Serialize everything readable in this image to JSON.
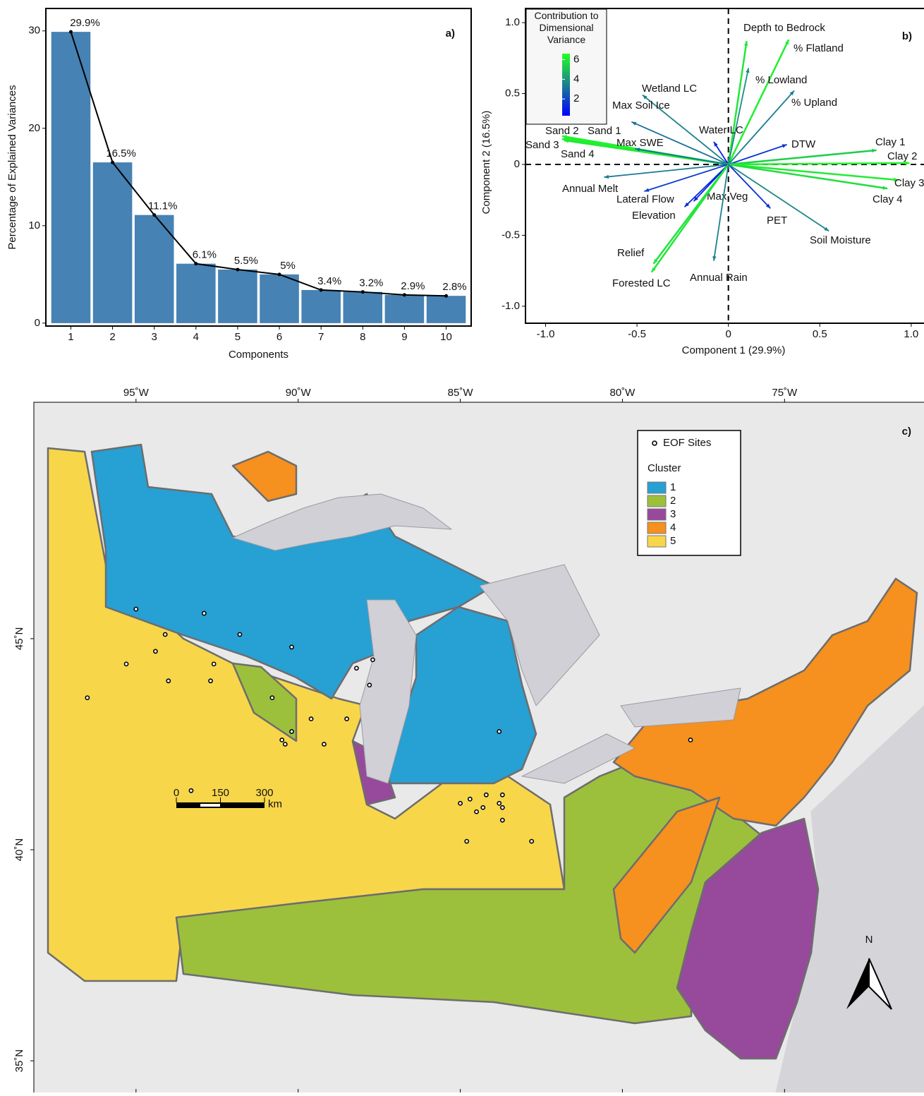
{
  "chart_data": [
    {
      "type": "bar",
      "panel": "a)",
      "xlabel": "Components",
      "ylabel": "Percentage of Explained Variances",
      "categories": [
        "1",
        "2",
        "3",
        "4",
        "5",
        "6",
        "7",
        "8",
        "9",
        "10"
      ],
      "values": [
        29.9,
        16.5,
        11.1,
        6.1,
        5.5,
        5,
        3.4,
        3.2,
        2.9,
        2.8
      ],
      "value_labels": [
        "29.9%",
        "16.5%",
        "11.1%",
        "6.1%",
        "5.5%",
        "5%",
        "3.4%",
        "3.2%",
        "2.9%",
        "2.8%"
      ],
      "color": "#4682b4",
      "line_color": "#000000",
      "ylim": [
        -0.3,
        32.3
      ],
      "yticks": [
        0,
        10,
        20,
        30
      ]
    },
    {
      "type": "biplot",
      "panel": "b)",
      "xlabel": "Component 1 (29.9%)",
      "ylabel": "Component 2 (16.5%)",
      "xlim": [
        -1.11,
        1.07
      ],
      "ylim": [
        -1.12,
        1.1
      ],
      "xticks": [
        {
          "value": -1,
          "label": "-1.0"
        },
        -0.5,
        0,
        0.5,
        {
          "value": 1,
          "label": "1.0"
        }
      ],
      "yticks": [
        {
          "value": -1,
          "label": "-1.0"
        },
        -0.5,
        0,
        0.5,
        {
          "value": 1,
          "label": "1.0"
        }
      ],
      "legend_title": "Contribution to Dimensional Variance",
      "colorbar": {
        "clim": [
          0.3,
          6.6
        ],
        "ticks": [
          2,
          4,
          6
        ],
        "colors": [
          "#0000ff",
          "#1b7f8f",
          "#22ff22"
        ]
      },
      "variables": [
        {
          "label": "Depth to Bedrock",
          "x": 0.1,
          "y": 0.87,
          "contribution": 6.0
        },
        {
          "label": "% Flatland",
          "x": 0.33,
          "y": 0.88,
          "contribution": 6.2
        },
        {
          "label": "% Lowland",
          "x": 0.11,
          "y": 0.68,
          "contribution": 3.8
        },
        {
          "label": "% Upland",
          "x": 0.36,
          "y": 0.52,
          "contribution": 3.4
        },
        {
          "label": "Wetland LC",
          "x": -0.47,
          "y": 0.49,
          "contribution": 3.5
        },
        {
          "label": "Max Soil Ice",
          "x": -0.53,
          "y": 0.3,
          "contribution": 3.1
        },
        {
          "label": "Water LC",
          "x": -0.08,
          "y": 0.16,
          "contribution": 1.2
        },
        {
          "label": "DTW",
          "x": 0.32,
          "y": 0.14,
          "contribution": 1.6
        },
        {
          "label": "Sand 1",
          "x": -0.9,
          "y": 0.19,
          "contribution": 6.2
        },
        {
          "label": "Sand 2",
          "x": -0.91,
          "y": 0.2,
          "contribution": 6.3
        },
        {
          "label": "Sand 3",
          "x": -0.91,
          "y": 0.18,
          "contribution": 6.2
        },
        {
          "label": "Sand 4",
          "x": -0.9,
          "y": 0.17,
          "contribution": 6.1
        },
        {
          "label": "Max SWE",
          "x": -0.51,
          "y": 0.11,
          "contribution": 3.0
        },
        {
          "label": "Clay 1",
          "x": 0.81,
          "y": 0.1,
          "contribution": 5.4
        },
        {
          "label": "Clay 2",
          "x": 0.99,
          "y": 0.01,
          "contribution": 6.3
        },
        {
          "label": "Clay 3",
          "x": 0.93,
          "y": -0.11,
          "contribution": 6.1
        },
        {
          "label": "Clay 4",
          "x": 0.87,
          "y": -0.17,
          "contribution": 5.8
        },
        {
          "label": "Annual Melt",
          "x": -0.68,
          "y": -0.09,
          "contribution": 3.3
        },
        {
          "label": "Lateral Flow",
          "x": -0.46,
          "y": -0.19,
          "contribution": 1.8
        },
        {
          "label": "Elevation",
          "x": -0.24,
          "y": -0.3,
          "contribution": 1.3
        },
        {
          "label": "Max Veg",
          "x": -0.19,
          "y": -0.26,
          "contribution": 1.2
        },
        {
          "label": "PET",
          "x": 0.23,
          "y": -0.31,
          "contribution": 1.5
        },
        {
          "label": "Soil Moisture",
          "x": 0.55,
          "y": -0.47,
          "contribution": 3.6
        },
        {
          "label": "Relief",
          "x": -0.41,
          "y": -0.7,
          "contribution": 5.9
        },
        {
          "label": "Forested LC",
          "x": -0.42,
          "y": -0.76,
          "contribution": 6.0
        },
        {
          "label": "Annual Rain",
          "x": -0.08,
          "y": -0.68,
          "contribution": 3.5
        }
      ]
    },
    {
      "type": "map",
      "panel": "c)",
      "xlim": [
        -98.15,
        -70.7
      ],
      "ylim": [
        34.25,
        50.6
      ],
      "xticks": [
        {
          "value": -95,
          "label": "95˚W"
        },
        {
          "value": -90,
          "label": "90˚W"
        },
        {
          "value": -85,
          "label": "85˚W"
        },
        {
          "value": -80,
          "label": "80˚W"
        },
        {
          "value": -75,
          "label": "75˚W"
        }
      ],
      "yticks": [
        {
          "value": 45,
          "label": "45˚N"
        },
        {
          "value": 40,
          "label": "40˚N"
        },
        {
          "value": 35,
          "label": "35˚N"
        }
      ],
      "sites": {
        "name": "EOF Sites",
        "lon": [
          -95.0,
          -92.9,
          -91.8,
          -94.1,
          -94.4,
          -95.3,
          -92.6,
          -94.0,
          -92.7,
          -96.5,
          -90.2,
          -90.8,
          -89.6,
          -90.2,
          -90.5,
          -90.4,
          -89.2,
          -88.5,
          -88.2,
          -87.7,
          -87.8,
          -93.3,
          -83.8,
          -77.9,
          -85.0,
          -84.7,
          -84.2,
          -83.7,
          -83.8,
          -84.3,
          -83.7,
          -84.5,
          -83.7,
          -84.8,
          -82.8
        ],
        "lat": [
          45.7,
          45.6,
          45.1,
          45.1,
          44.7,
          44.4,
          44.4,
          44.0,
          44.0,
          43.6,
          44.8,
          43.6,
          43.1,
          42.8,
          42.6,
          42.5,
          42.5,
          43.1,
          44.3,
          44.5,
          43.9,
          41.4,
          42.8,
          42.6,
          41.1,
          41.2,
          41.3,
          41.3,
          41.1,
          41.0,
          41.0,
          40.9,
          40.7,
          40.2,
          40.2
        ]
      },
      "legend_title": "Cluster",
      "clusters": [
        {
          "name": "1",
          "color": "#27a0d4"
        },
        {
          "name": "2",
          "color": "#9cc03c"
        },
        {
          "name": "3",
          "color": "#974a9b"
        },
        {
          "name": "4",
          "color": "#f6901e"
        },
        {
          "name": "5",
          "color": "#f8d64a"
        }
      ],
      "scale_bar": {
        "ticks": [
          0,
          150,
          300
        ],
        "unit": "km"
      },
      "north": "N"
    }
  ]
}
